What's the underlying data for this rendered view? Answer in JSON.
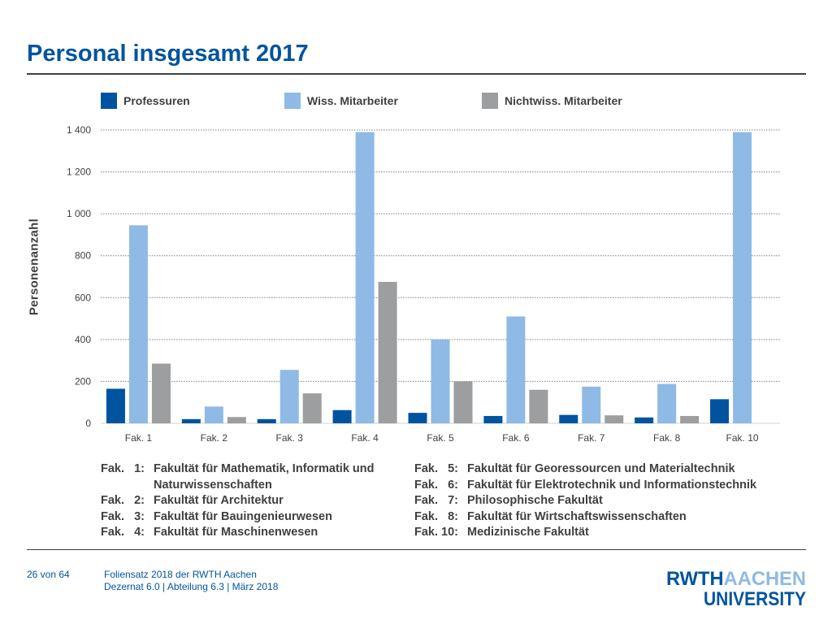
{
  "page": {
    "title": "Personal insgesamt 2017",
    "page_number": "26 von 64",
    "footer_line1": "Foliensatz 2018 der RWTH Aachen",
    "footer_line2": "Dezernat 6.0 | Abteilung 6.3 | März 2018",
    "logo_top": "RWTHAACHEN",
    "logo_bottom": "UNIVERSITY"
  },
  "colors": {
    "professuren": "#00549f",
    "wiss": "#8ebae5",
    "nichtwiss": "#9c9e9f",
    "grid": "#808080",
    "title": "#00549f"
  },
  "chart_data": {
    "type": "bar",
    "categories": [
      "Fak. 1",
      "Fak. 2",
      "Fak. 3",
      "Fak. 4",
      "Fak. 5",
      "Fak. 6",
      "Fak. 7",
      "Fak. 8",
      "Fak. 10"
    ],
    "series": [
      {
        "name": "Professuren",
        "values": [
          165,
          20,
          20,
          63,
          50,
          35,
          40,
          28,
          115
        ]
      },
      {
        "name": "Wiss. Mitarbeiter",
        "values": [
          945,
          80,
          255,
          1390,
          400,
          510,
          175,
          188,
          1390
        ]
      },
      {
        "name": "Nichtwiss. Mitarbeiter",
        "values": [
          285,
          30,
          143,
          675,
          200,
          160,
          38,
          35,
          0
        ]
      }
    ],
    "ylabel": "Personenanzahl",
    "xlabel": "",
    "ylim": [
      0,
      1400
    ],
    "yticks": [
      0,
      200,
      400,
      600,
      800,
      1000,
      1200,
      1400
    ],
    "ytick_labels": [
      "0",
      "200",
      "400",
      "600",
      "800",
      "1 000",
      "1 200",
      "1 400"
    ],
    "grid": true,
    "legend_position": "top"
  },
  "notes": {
    "left": [
      {
        "code": "Fak.   1:",
        "text": "Fakultät für Mathematik, Informatik und"
      },
      {
        "code": "",
        "text": "Naturwissenschaften"
      },
      {
        "code": "Fak.   2:",
        "text": "Fakultät für Architektur"
      },
      {
        "code": "Fak.   3:",
        "text": "Fakultät für Bauingenieurwesen"
      },
      {
        "code": "Fak.   4:",
        "text": "Fakultät für Maschinenwesen"
      }
    ],
    "right": [
      {
        "code": "Fak.   5:",
        "text": "Fakultät für Georessourcen und Materialtechnik"
      },
      {
        "code": "Fak.   6:",
        "text": "Fakultät für Elektrotechnik und Informationstechnik"
      },
      {
        "code": "Fak.   7:",
        "text": "Philosophische Fakultät"
      },
      {
        "code": "Fak.   8:",
        "text": "Fakultät für Wirtschaftswissenschaften"
      },
      {
        "code": "Fak. 10:",
        "text": "Medizinische Fakultät"
      }
    ]
  }
}
